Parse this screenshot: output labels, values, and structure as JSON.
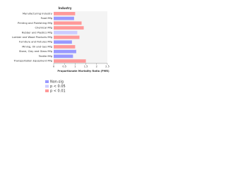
{
  "chart_data": {
    "type": "bar",
    "orientation": "horizontal",
    "title": "Industry",
    "x_label": "Proportionate Mortality Ratio (PMR)",
    "categories": [
      "Manufacturing Industry",
      "Food Mfg",
      "Printing and Publishing Mfg",
      "Chemical Mfg",
      "Rubber and Plastics Mfg",
      "Lumber and Wood Products Mfg",
      "Furniture and Fixtures Mfg",
      "Mining, Oil and Gas Mfg",
      "Stone, Clay and Glass Mfg",
      "Textile Mfg",
      "Transportation Equipment Mfg"
    ],
    "values": [
      1.0,
      0.95,
      1.3,
      1.4,
      1.1,
      1.2,
      0.85,
      1.0,
      1.05,
      0.9,
      1.5
    ],
    "colors": [
      "#ff9999",
      "#9999ff",
      "#ff9999",
      "#ff9999",
      "#ccccff",
      "#ff9999",
      "#9999ff",
      "#ff9999",
      "#9999ff",
      "#9999ff",
      "#ff9999"
    ],
    "xlim": [
      0,
      2.5
    ],
    "xticks": [
      0,
      0.5,
      1,
      1.5,
      2,
      2.5
    ],
    "legend": [
      {
        "label": "Non-sig",
        "color": "#9999ff"
      },
      {
        "label": "p < 0.05",
        "color": "#ccccff"
      },
      {
        "label": "p < 0.01",
        "color": "#ff9999"
      }
    ]
  }
}
